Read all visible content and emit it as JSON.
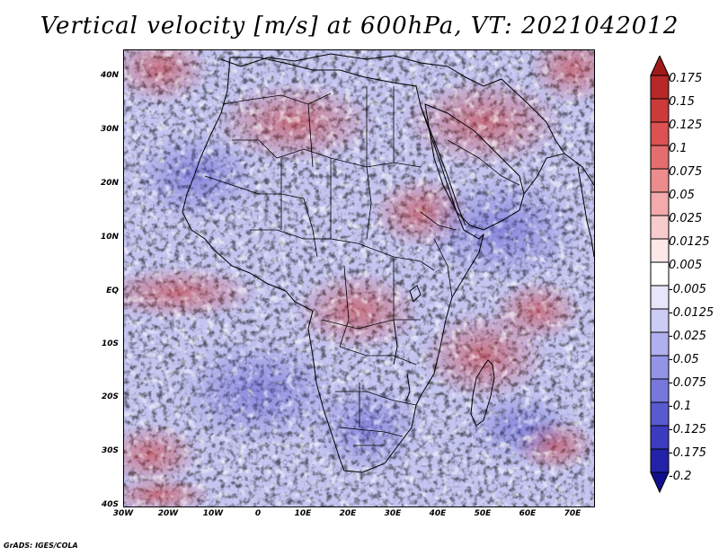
{
  "title": "Vertical velocity [m/s] at 600hPa, VT: 2021042012",
  "credit": "GrADS: IGES/COLA",
  "lat_labels": [
    "40N",
    "30N",
    "20N",
    "10N",
    "EQ",
    "10S",
    "20S",
    "30S",
    "40S"
  ],
  "lon_labels": [
    "30W",
    "20W",
    "10W",
    "0",
    "10E",
    "20E",
    "30E",
    "40E",
    "50E",
    "60E",
    "70E"
  ],
  "colorbar": {
    "labels": [
      "0.175",
      "0.15",
      "0.125",
      "0.1",
      "0.075",
      "0.05",
      "0.025",
      "0.0125",
      "0.005",
      "-0.005",
      "-0.0125",
      "-0.025",
      "-0.05",
      "-0.075",
      "-0.1",
      "-0.125",
      "-0.175",
      "-0.2"
    ],
    "colors": [
      "#a01a1a",
      "#b82828",
      "#cc3a3a",
      "#dc5252",
      "#e46e6e",
      "#ec8c8c",
      "#f2aaaa",
      "#f8cccc",
      "#fde8e8",
      "#ffffff",
      "#e6e6fb",
      "#ccccf5",
      "#b0b0ee",
      "#9494e6",
      "#7878dc",
      "#5a5ad0",
      "#3c3cc0",
      "#2222a8",
      "#10108e"
    ]
  },
  "colors": {
    "positive": "#e04848",
    "negative": "#5050d8",
    "background": "#ffffff"
  }
}
